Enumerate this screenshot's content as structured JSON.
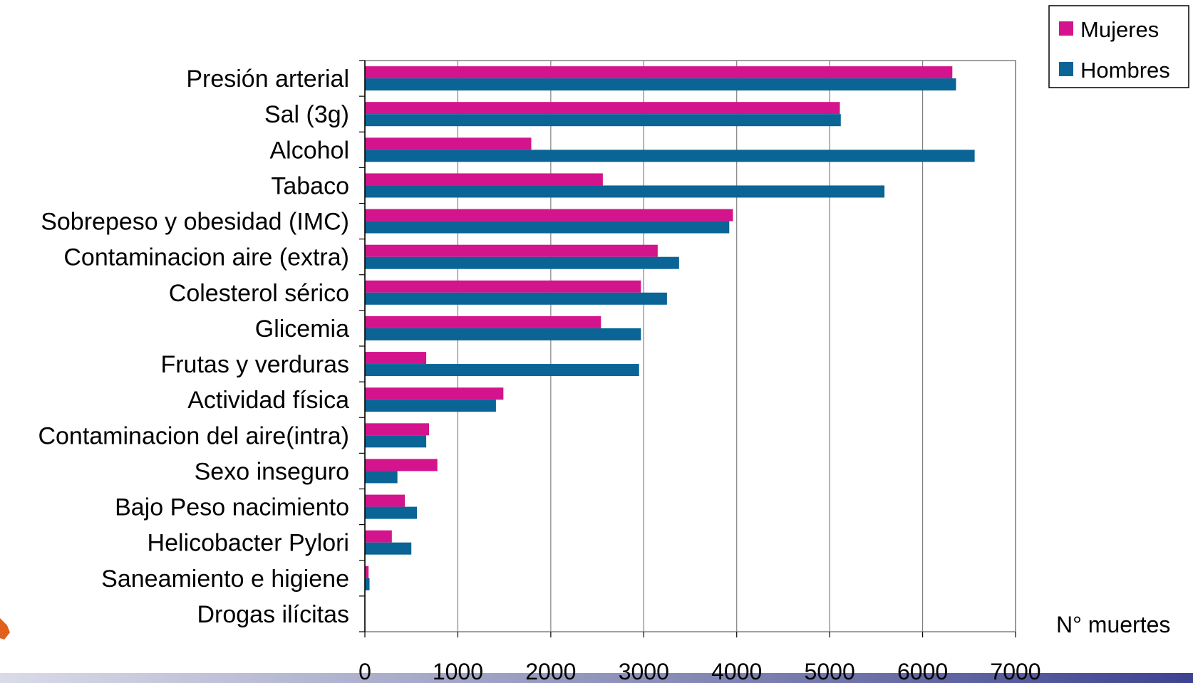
{
  "chart_data": {
    "type": "bar",
    "orientation": "horizontal",
    "categories": [
      "Presión  arterial",
      "Sal (3g)",
      "Alcohol ",
      "Tabaco",
      "Sobrepeso y obesidad (IMC)",
      "Contaminacion aire (extra)",
      "Colesterol sérico",
      "Glicemia ",
      "Frutas y verduras",
      "Actividad física",
      "Contaminacion del aire(intra)",
      "Sexo inseguro",
      "Bajo Peso nacimiento",
      "Helicobacter Pylori",
      "Saneamiento e higiene",
      "Drogas ilícitas"
    ],
    "series": [
      {
        "name": "Mujeres",
        "color": "#D4148C",
        "values": [
          6320,
          5110,
          1790,
          2560,
          3960,
          3150,
          2970,
          2540,
          660,
          1490,
          690,
          780,
          430,
          290,
          40,
          0
        ]
      },
      {
        "name": "Hombres",
        "color": "#0A6496",
        "values": [
          6360,
          5120,
          6560,
          5590,
          3920,
          3380,
          3250,
          2970,
          2950,
          1410,
          660,
          350,
          560,
          500,
          50,
          0
        ]
      }
    ],
    "xlim": [
      0,
      7000
    ],
    "xticks": [
      0,
      1000,
      2000,
      3000,
      4000,
      5000,
      6000,
      7000
    ],
    "xlabel": "N° muertes",
    "ylabel": "",
    "title": "",
    "grid": "vertical",
    "legend": "top-right"
  }
}
